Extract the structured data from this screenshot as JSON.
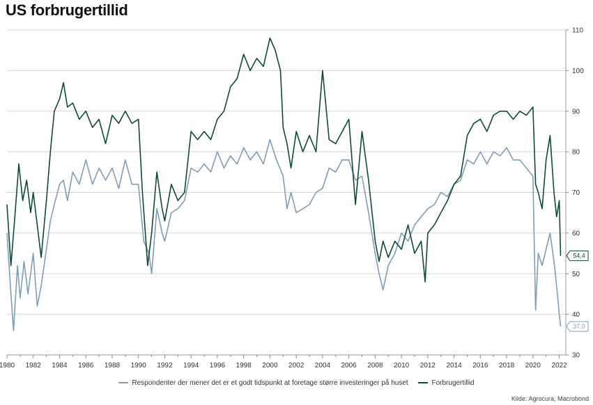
{
  "title": "US forbrugertillid",
  "source": "Kilde: Agrocura, Macrobond",
  "chart_data": {
    "type": "line",
    "xlim": [
      1980,
      2022.5
    ],
    "ylim": [
      30,
      110
    ],
    "y_ticks": [
      30,
      40,
      50,
      60,
      70,
      80,
      90,
      100,
      110
    ],
    "x_ticks": [
      1980,
      1982,
      1984,
      1986,
      1988,
      1990,
      1992,
      1994,
      1996,
      1998,
      2000,
      2002,
      2004,
      2006,
      2008,
      2010,
      2012,
      2014,
      2016,
      2018,
      2020,
      2022
    ],
    "y_axis_position": "right",
    "grid": true,
    "legend_position": "bottom",
    "series": [
      {
        "name": "Respondenter der mener det er et godt tidspunkt at foretage større investeringer på huset",
        "color": "#7f9db7",
        "last_label": "37,0",
        "x": [
          1980.0,
          1980.3,
          1980.5,
          1980.8,
          1981.0,
          1981.3,
          1981.6,
          1982.0,
          1982.3,
          1982.6,
          1983.0,
          1983.3,
          1983.6,
          1984.0,
          1984.3,
          1984.6,
          1985.0,
          1985.5,
          1986.0,
          1986.5,
          1987.0,
          1987.5,
          1988.0,
          1988.5,
          1989.0,
          1989.5,
          1990.0,
          1990.4,
          1990.8,
          1991.0,
          1991.4,
          1991.8,
          1992.0,
          1992.5,
          1993.0,
          1993.5,
          1994.0,
          1994.5,
          1995.0,
          1995.5,
          1996.0,
          1996.5,
          1997.0,
          1997.5,
          1998.0,
          1998.5,
          1999.0,
          1999.5,
          2000.0,
          2000.5,
          2001.0,
          2001.3,
          2001.6,
          2002.0,
          2002.5,
          2003.0,
          2003.5,
          2004.0,
          2004.5,
          2005.0,
          2005.5,
          2006.0,
          2006.5,
          2007.0,
          2007.5,
          2008.0,
          2008.3,
          2008.6,
          2009.0,
          2009.5,
          2010.0,
          2010.5,
          2011.0,
          2011.5,
          2012.0,
          2012.5,
          2013.0,
          2013.5,
          2014.0,
          2014.5,
          2015.0,
          2015.5,
          2016.0,
          2016.5,
          2017.0,
          2017.5,
          2018.0,
          2018.5,
          2019.0,
          2019.5,
          2020.0,
          2020.2,
          2020.4,
          2020.7,
          2021.0,
          2021.3,
          2021.6,
          2021.8,
          2022.0,
          2022.1
        ],
        "values": [
          60,
          45,
          36,
          52,
          44,
          53,
          45,
          55,
          42,
          47,
          56,
          63,
          67,
          72,
          73,
          68,
          75,
          72,
          78,
          72,
          76,
          73,
          76,
          71,
          78,
          72,
          72,
          58,
          55,
          50,
          66,
          60,
          58,
          65,
          66,
          68,
          76,
          75,
          77,
          75,
          80,
          76,
          79,
          77,
          81,
          78,
          80,
          77,
          83,
          78,
          74,
          66,
          70,
          65,
          66,
          67,
          70,
          71,
          76,
          75,
          78,
          78,
          73,
          74,
          65,
          55,
          50,
          46,
          52,
          55,
          60,
          58,
          62,
          64,
          66,
          67,
          70,
          69,
          72,
          73,
          78,
          77,
          80,
          77,
          80,
          79,
          81,
          78,
          78,
          76,
          74,
          41,
          55,
          52,
          56,
          60,
          53,
          47,
          40,
          37
        ]
      },
      {
        "name": "Forbrugertillid",
        "color": "#0b4a36",
        "last_label": "54,4",
        "x": [
          1980.0,
          1980.3,
          1980.6,
          1980.9,
          1981.2,
          1981.5,
          1981.8,
          1982.0,
          1982.3,
          1982.6,
          1983.0,
          1983.3,
          1983.6,
          1984.0,
          1984.3,
          1984.6,
          1985.0,
          1985.5,
          1986.0,
          1986.5,
          1987.0,
          1987.5,
          1988.0,
          1988.5,
          1989.0,
          1989.5,
          1990.0,
          1990.3,
          1990.7,
          1991.0,
          1991.4,
          1991.8,
          1992.0,
          1992.5,
          1993.0,
          1993.5,
          1994.0,
          1994.5,
          1995.0,
          1995.5,
          1996.0,
          1996.5,
          1997.0,
          1997.5,
          1998.0,
          1998.5,
          1999.0,
          1999.5,
          2000.0,
          2000.4,
          2000.8,
          2001.0,
          2001.3,
          2001.6,
          2002.0,
          2002.5,
          2003.0,
          2003.5,
          2004.0,
          2004.5,
          2005.0,
          2005.5,
          2006.0,
          2006.5,
          2007.0,
          2007.5,
          2008.0,
          2008.3,
          2008.6,
          2009.0,
          2009.5,
          2010.0,
          2010.5,
          2011.0,
          2011.5,
          2011.8,
          2012.0,
          2012.5,
          2013.0,
          2013.5,
          2014.0,
          2014.5,
          2015.0,
          2015.5,
          2016.0,
          2016.5,
          2017.0,
          2017.5,
          2018.0,
          2018.5,
          2019.0,
          2019.5,
          2020.0,
          2020.2,
          2020.4,
          2020.7,
          2021.0,
          2021.3,
          2021.6,
          2021.8,
          2022.0,
          2022.1
        ],
        "values": [
          67,
          52,
          64,
          77,
          68,
          73,
          65,
          70,
          62,
          54,
          68,
          80,
          90,
          93,
          97,
          91,
          92,
          88,
          90,
          86,
          88,
          82,
          89,
          87,
          90,
          87,
          88,
          70,
          52,
          60,
          75,
          66,
          63,
          72,
          68,
          70,
          85,
          83,
          85,
          83,
          88,
          90,
          96,
          98,
          104,
          100,
          103,
          101,
          108,
          105,
          100,
          86,
          82,
          76,
          85,
          80,
          84,
          80,
          100,
          83,
          82,
          85,
          88,
          67,
          85,
          73,
          58,
          53,
          58,
          54,
          58,
          56,
          62,
          55,
          58,
          48,
          60,
          62,
          65,
          68,
          72,
          74,
          84,
          87,
          88,
          85,
          89,
          90,
          90,
          88,
          90,
          89,
          91,
          72,
          70,
          66,
          78,
          84,
          70,
          64,
          68,
          54.4
        ]
      }
    ]
  }
}
